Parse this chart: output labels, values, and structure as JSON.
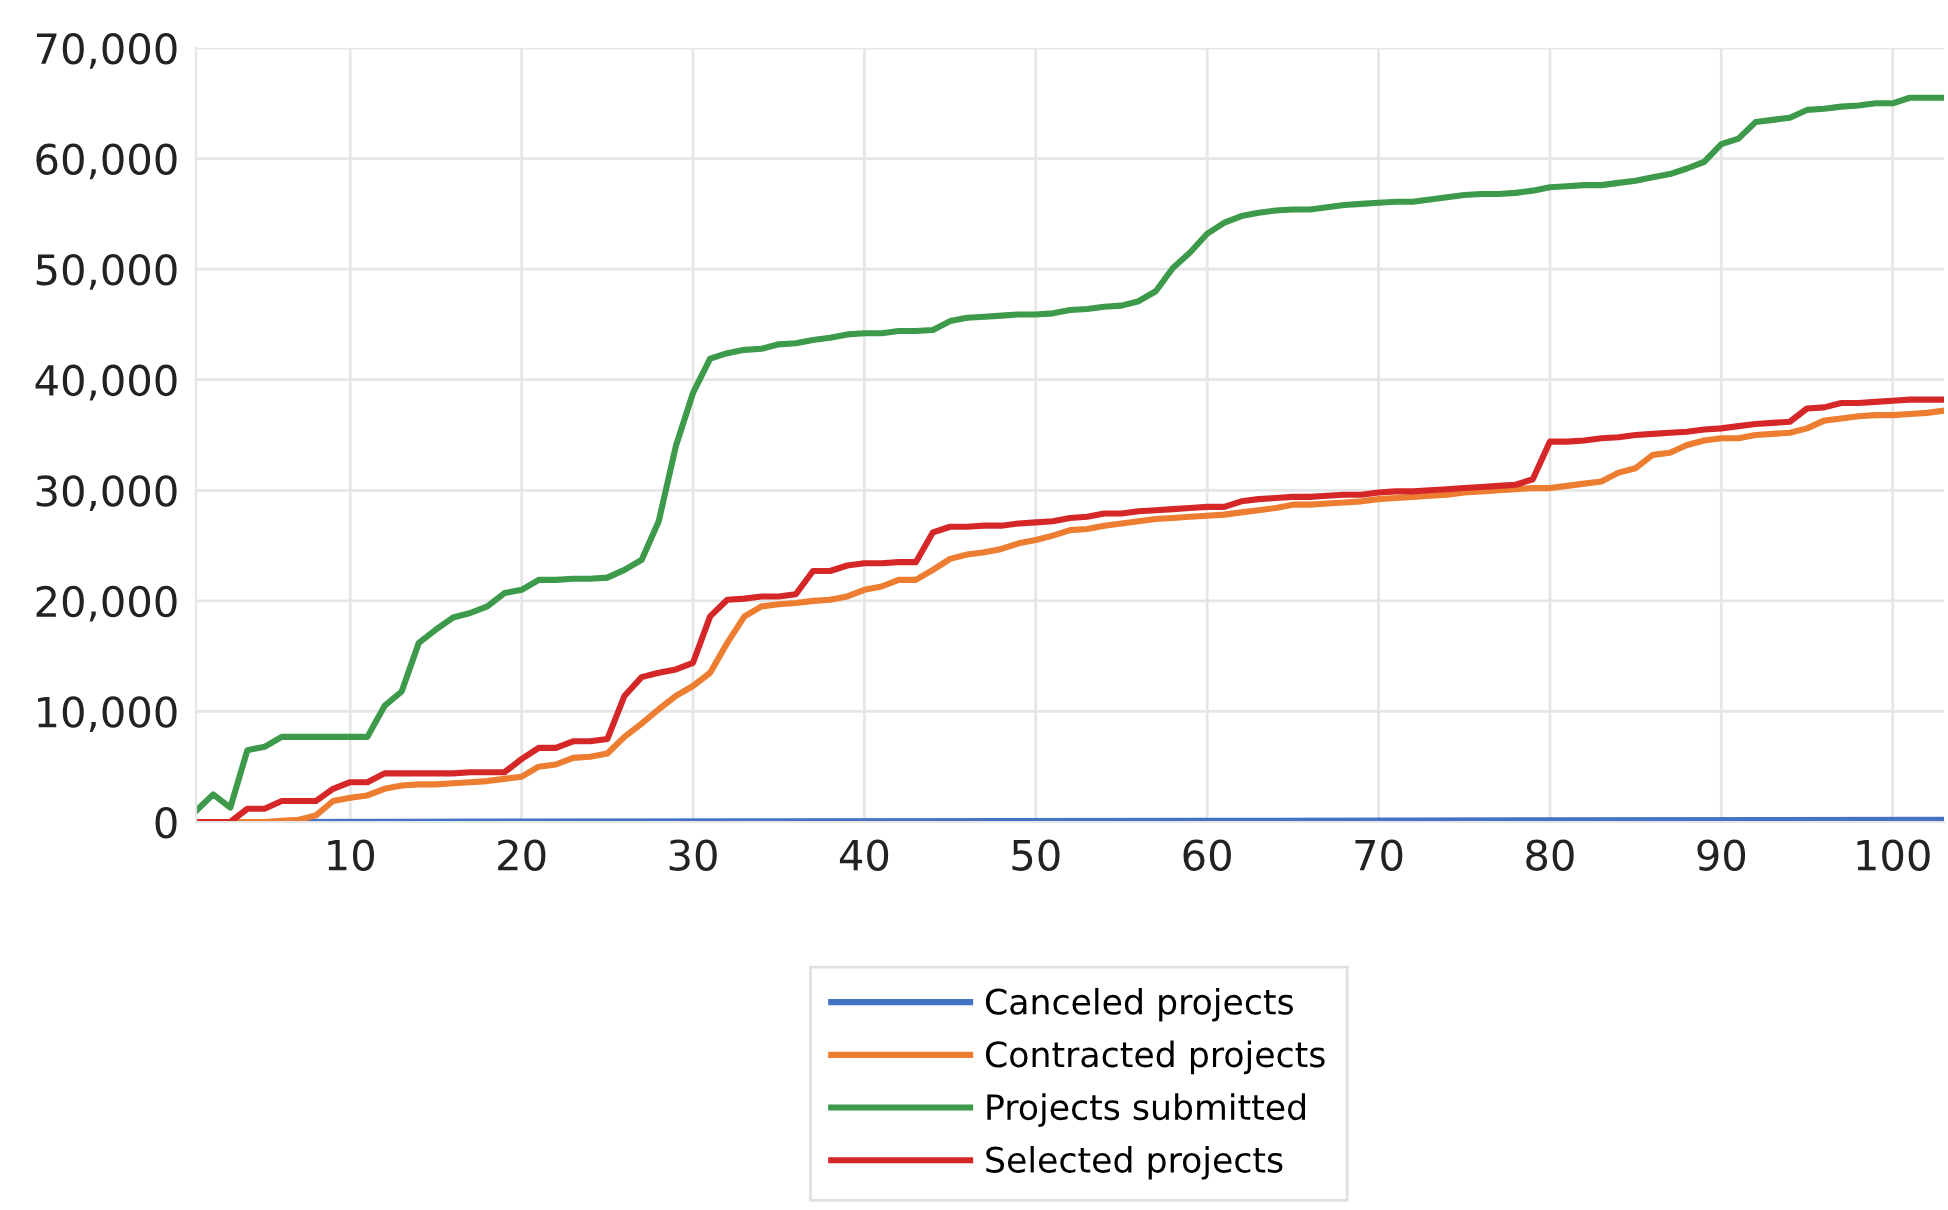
{
  "chart_data": {
    "type": "line",
    "x": [
      1,
      2,
      3,
      4,
      5,
      6,
      7,
      8,
      9,
      10,
      11,
      12,
      13,
      14,
      15,
      16,
      17,
      18,
      19,
      20,
      21,
      22,
      23,
      24,
      25,
      26,
      27,
      28,
      29,
      30,
      31,
      32,
      33,
      34,
      35,
      36,
      37,
      38,
      39,
      40,
      41,
      42,
      43,
      44,
      45,
      46,
      47,
      48,
      49,
      50,
      51,
      52,
      53,
      54,
      55,
      56,
      57,
      58,
      59,
      60,
      61,
      62,
      63,
      64,
      65,
      66,
      67,
      68,
      69,
      70,
      71,
      72,
      73,
      74,
      75,
      76,
      77,
      78,
      79,
      80,
      81,
      82,
      83,
      84,
      85,
      86,
      87,
      88,
      89,
      90,
      91,
      92,
      93,
      94,
      95,
      96,
      97,
      98,
      99,
      100,
      101,
      102,
      103
    ],
    "series": [
      {
        "name": "Canceled projects",
        "color": "#4472c4",
        "x": [
          1,
          60,
          103
        ],
        "values": [
          0,
          100,
          200
        ]
      },
      {
        "name": "Contracted projects",
        "color": "#ed7d31",
        "values": [
          0,
          0,
          0,
          0,
          0,
          100,
          200,
          600,
          1900,
          2200,
          2400,
          3000,
          3300,
          3400,
          3400,
          3500,
          3600,
          3700,
          3900,
          4100,
          5000,
          5200,
          5800,
          5900,
          6200,
          7700,
          8900,
          10200,
          11400,
          12300,
          13500,
          16200,
          18600,
          19500,
          19700,
          19800,
          20000,
          20100,
          20400,
          21000,
          21300,
          21900,
          21900,
          22800,
          23800,
          24200,
          24400,
          24700,
          25200,
          25500,
          25900,
          26400,
          26500,
          26800,
          27000,
          27200,
          27400,
          27500,
          27600,
          27700,
          27800,
          28000,
          28200,
          28400,
          28700,
          28700,
          28800,
          28900,
          29000,
          29200,
          29300,
          29400,
          29500,
          29600,
          29800,
          29900,
          30000,
          30100,
          30200,
          30200,
          30400,
          30600,
          30800,
          31600,
          32000,
          33200,
          33400,
          34100,
          34500,
          34700,
          34700,
          35000,
          35100,
          35200,
          35600,
          36300,
          36500,
          36700,
          36800,
          36800,
          36900,
          37000,
          37200
        ]
      },
      {
        "name": "Projects submitted",
        "color": "#3d9a4a",
        "values": [
          1000,
          2500,
          1300,
          6500,
          6800,
          7700,
          7700,
          7700,
          7700,
          7700,
          7700,
          10500,
          11800,
          16200,
          17400,
          18500,
          18900,
          19500,
          20700,
          21000,
          21900,
          21900,
          22000,
          22000,
          22100,
          22800,
          23700,
          27200,
          34000,
          38800,
          41900,
          42400,
          42700,
          42800,
          43200,
          43300,
          43600,
          43800,
          44100,
          44200,
          44200,
          44400,
          44400,
          44500,
          45300,
          45600,
          45700,
          45800,
          45900,
          45900,
          46000,
          46300,
          46400,
          46600,
          46700,
          47100,
          48000,
          50100,
          51500,
          53200,
          54200,
          54800,
          55100,
          55300,
          55400,
          55400,
          55600,
          55800,
          55900,
          56000,
          56100,
          56100,
          56300,
          56500,
          56700,
          56800,
          56800,
          56900,
          57100,
          57400,
          57500,
          57600,
          57600,
          57800,
          58000,
          58300,
          58600,
          59100,
          59700,
          61300,
          61800,
          63300,
          63500,
          63700,
          64400,
          64500,
          64700,
          64800,
          65000,
          65000,
          65500,
          65500,
          65500
        ]
      },
      {
        "name": "Selected projects",
        "color": "#d62728",
        "values": [
          0,
          0,
          0,
          1200,
          1200,
          1900,
          1900,
          1900,
          3000,
          3600,
          3600,
          4400,
          4400,
          4400,
          4400,
          4400,
          4500,
          4500,
          4500,
          5700,
          6700,
          6700,
          7300,
          7300,
          7500,
          11400,
          13100,
          13500,
          13800,
          14400,
          18600,
          20100,
          20200,
          20400,
          20400,
          20600,
          22700,
          22700,
          23200,
          23400,
          23400,
          23500,
          23500,
          26200,
          26700,
          26700,
          26800,
          26800,
          27000,
          27100,
          27200,
          27500,
          27600,
          27900,
          27900,
          28100,
          28200,
          28300,
          28400,
          28500,
          28500,
          29000,
          29200,
          29300,
          29400,
          29400,
          29500,
          29600,
          29600,
          29800,
          29900,
          29900,
          30000,
          30100,
          30200,
          30300,
          30400,
          30500,
          31000,
          34400,
          34400,
          34500,
          34700,
          34800,
          35000,
          35100,
          35200,
          35300,
          35500,
          35600,
          35800,
          36000,
          36100,
          36200,
          37400,
          37500,
          37900,
          37900,
          38000,
          38100,
          38200,
          38200,
          38200
        ]
      }
    ],
    "xlim": [
      1,
      103
    ],
    "xticks": [
      10,
      20,
      30,
      40,
      50,
      60,
      70,
      80,
      90,
      100
    ],
    "ylim": [
      0,
      70000
    ],
    "yticks": [
      {
        "value": 0,
        "label": "0"
      },
      {
        "value": 10000,
        "label": "10,000"
      },
      {
        "value": 20000,
        "label": "20,000"
      },
      {
        "value": 30000,
        "label": "30,000"
      },
      {
        "value": 40000,
        "label": "40,000"
      },
      {
        "value": 50000,
        "label": "50,000"
      },
      {
        "value": 60000,
        "label": "60,000"
      },
      {
        "value": 70000,
        "label": "70,000"
      }
    ],
    "grid": true,
    "legend": "bottom",
    "marker": "none",
    "line_style": "solid"
  }
}
